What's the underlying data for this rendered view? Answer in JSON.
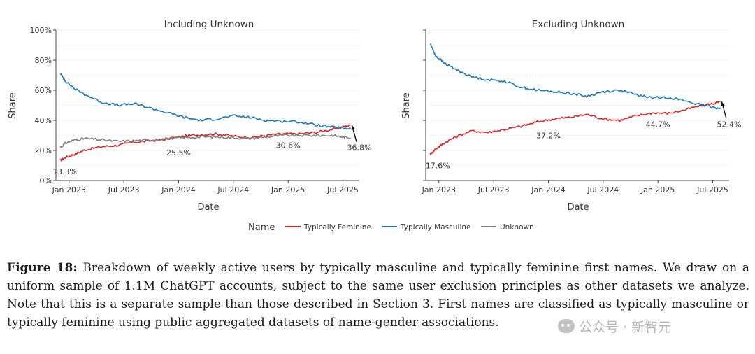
{
  "chart_data": [
    {
      "type": "line",
      "title": "Including Unknown",
      "xlabel": "Date",
      "ylabel": "Share",
      "ylim": [
        0,
        100
      ],
      "y_ticks": [
        "0%",
        "20%",
        "40%",
        "60%",
        "80%",
        "100%"
      ],
      "x_ticks": [
        "Jan 2023",
        "Jul 2023",
        "Jan 2024",
        "Jul 2024",
        "Jan 2025",
        "Jul 2025"
      ],
      "x_tick_positions": [
        2023.0,
        2023.5,
        2024.0,
        2024.5,
        2025.0,
        2025.5
      ],
      "xlim": [
        2022.88,
        2025.65
      ],
      "series": [
        {
          "name": "Typically Feminine",
          "color": "#d62728",
          "x": [
            2022.92,
            2022.97,
            2023.05,
            2023.15,
            2023.3,
            2023.45,
            2023.6,
            2023.75,
            2023.9,
            2024.05,
            2024.2,
            2024.35,
            2024.5,
            2024.65,
            2024.8,
            2024.95,
            2025.1,
            2025.25,
            2025.4,
            2025.5,
            2025.57
          ],
          "y": [
            13.3,
            15.5,
            17.5,
            20.5,
            22.5,
            23.5,
            25.5,
            26.5,
            27.5,
            29.5,
            30.5,
            31.0,
            29.5,
            28.5,
            30.0,
            31.0,
            31.0,
            32.0,
            34.0,
            35.5,
            36.8
          ]
        },
        {
          "name": "Typically Masculine",
          "color": "#1f77b4",
          "x": [
            2022.92,
            2022.97,
            2023.05,
            2023.15,
            2023.3,
            2023.45,
            2023.6,
            2023.75,
            2023.9,
            2024.05,
            2024.2,
            2024.35,
            2024.5,
            2024.65,
            2024.8,
            2024.95,
            2025.1,
            2025.25,
            2025.4,
            2025.5,
            2025.57
          ],
          "y": [
            71,
            66,
            61,
            57,
            52,
            50,
            51,
            48,
            45,
            42,
            40,
            41,
            43,
            42,
            40,
            39.5,
            39,
            37,
            35.5,
            35,
            34.5
          ]
        },
        {
          "name": "Unknown",
          "color": "#808080",
          "x": [
            2022.92,
            2022.97,
            2023.05,
            2023.15,
            2023.3,
            2023.45,
            2023.6,
            2023.75,
            2023.9,
            2024.05,
            2024.2,
            2024.35,
            2024.5,
            2024.65,
            2024.8,
            2024.95,
            2025.1,
            2025.25,
            2025.4,
            2025.5,
            2025.57
          ],
          "y": [
            22,
            25,
            27,
            28,
            27,
            26,
            26.5,
            27,
            28,
            28.5,
            29,
            29,
            28.5,
            28,
            29,
            30,
            30,
            30,
            30,
            29,
            28.5
          ]
        }
      ],
      "annotations": [
        {
          "text": "13.3%",
          "x": 2022.96,
          "y": 6
        },
        {
          "text": "25.5%",
          "x": 2024.0,
          "y": 18.5
        },
        {
          "text": "30.6%",
          "x": 2025.0,
          "y": 23.5
        },
        {
          "text": "36.8%",
          "x": 2025.65,
          "y": 22
        }
      ]
    },
    {
      "type": "line",
      "title": "Excluding Unknown",
      "xlabel": "Date",
      "ylabel": "Share",
      "ylim": [
        0,
        100
      ],
      "x_ticks": [
        "Jan 2023",
        "Jul 2023",
        "Jan 2024",
        "Jul 2024",
        "Jan 2025",
        "Jul 2025"
      ],
      "x_tick_positions": [
        2023.0,
        2023.5,
        2024.0,
        2024.5,
        2025.0,
        2025.5
      ],
      "xlim": [
        2022.88,
        2025.65
      ],
      "series": [
        {
          "name": "Typically Feminine",
          "color": "#d62728",
          "x": [
            2022.92,
            2022.97,
            2023.05,
            2023.15,
            2023.3,
            2023.45,
            2023.6,
            2023.75,
            2023.9,
            2024.05,
            2024.2,
            2024.35,
            2024.5,
            2024.65,
            2024.8,
            2024.95,
            2025.1,
            2025.25,
            2025.4,
            2025.5,
            2025.57
          ],
          "y": [
            17.6,
            21,
            25,
            29,
            33,
            32,
            34,
            36,
            39,
            41,
            42,
            44,
            41,
            40,
            43,
            45,
            44.7,
            47,
            50,
            51,
            52.4
          ]
        },
        {
          "name": "Typically Masculine",
          "color": "#1f77b4",
          "x": [
            2022.92,
            2022.97,
            2023.05,
            2023.15,
            2023.3,
            2023.45,
            2023.6,
            2023.75,
            2023.9,
            2024.05,
            2024.2,
            2024.35,
            2024.5,
            2024.65,
            2024.8,
            2024.95,
            2025.1,
            2025.25,
            2025.4,
            2025.5,
            2025.57
          ],
          "y": [
            91,
            83,
            78,
            74,
            69,
            67,
            66,
            62,
            60,
            59,
            58,
            56,
            59,
            60,
            57,
            55,
            55.3,
            53,
            50,
            49,
            47.6
          ]
        }
      ],
      "annotations": [
        {
          "text": "17.6%",
          "x": 2022.99,
          "y": 10
        },
        {
          "text": "37.2%",
          "x": 2024.0,
          "y": 30
        },
        {
          "text": "44.7%",
          "x": 2025.0,
          "y": 37.5
        },
        {
          "text": "52.4%",
          "x": 2025.65,
          "y": 37.5
        }
      ]
    }
  ],
  "legend": {
    "title": "Name",
    "entries": [
      {
        "label": "Typically Feminine",
        "color": "#d62728"
      },
      {
        "label": "Typically Masculine",
        "color": "#1f77b4"
      },
      {
        "label": "Unknown",
        "color": "#808080"
      }
    ]
  },
  "caption": {
    "label": "Figure 18:",
    "text": "Breakdown of weekly active users by typically masculine and typically feminine first names. We draw on a uniform sample of 1.1M ChatGPT accounts, subject to the same user exclusion principles as other datasets we analyze. Note that this is a separate sample than those described in Section 3. First names are classified as typically masculine or typically feminine using public aggregated datasets of name-gender associations."
  },
  "watermark": {
    "text": "公众号 · 新智元"
  }
}
